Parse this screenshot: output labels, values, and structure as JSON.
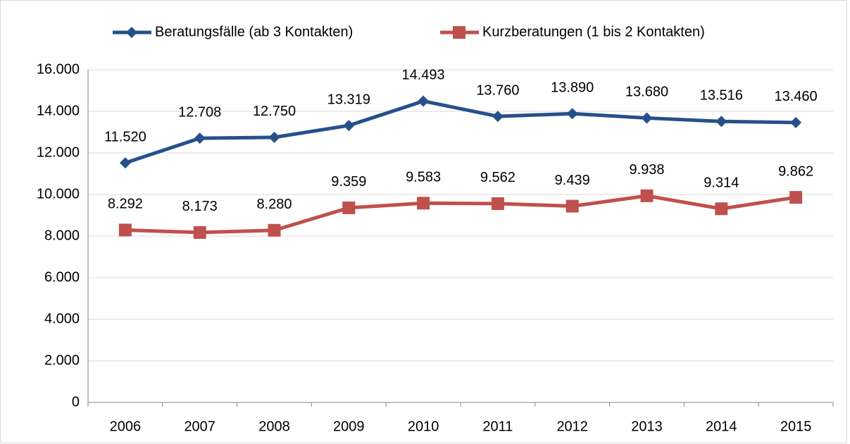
{
  "chart_data": {
    "type": "line",
    "categories": [
      "2006",
      "2007",
      "2008",
      "2009",
      "2010",
      "2011",
      "2012",
      "2013",
      "2014",
      "2015"
    ],
    "series": [
      {
        "name": "Beratungsfälle (ab 3 Kontakten)",
        "color": "#27508a",
        "marker": "diamond",
        "values": [
          11520,
          12708,
          12750,
          13319,
          14493,
          13760,
          13890,
          13680,
          13516,
          13460
        ],
        "value_labels": [
          "11.520",
          "12.708",
          "12.750",
          "13.319",
          "14.493",
          "13.760",
          "13.890",
          "13.680",
          "13.516",
          "13.460"
        ]
      },
      {
        "name": "Kurzberatungen (1 bis 2 Kontakten)",
        "color": "#c0504d",
        "marker": "square",
        "values": [
          8292,
          8173,
          8280,
          9359,
          9583,
          9562,
          9439,
          9938,
          9314,
          9862
        ],
        "value_labels": [
          "8.292",
          "8.173",
          "8.280",
          "9.359",
          "9.583",
          "9.562",
          "9.439",
          "9.938",
          "9.314",
          "9.862"
        ]
      }
    ],
    "ylim": [
      0,
      16000
    ],
    "yticks": [
      0,
      {
        "value": 2000,
        "label": "2.000"
      },
      {
        "value": 4000,
        "label": "4.000"
      },
      {
        "value": 6000,
        "label": "6.000"
      },
      {
        "value": 8000,
        "label": "8.000"
      },
      {
        "value": 10000,
        "label": "10.000"
      },
      {
        "value": 12000,
        "label": "12.000"
      },
      {
        "value": 14000,
        "label": "14.000"
      },
      {
        "value": 16000,
        "label": "16.000"
      }
    ],
    "grid": true,
    "legend": "top"
  }
}
